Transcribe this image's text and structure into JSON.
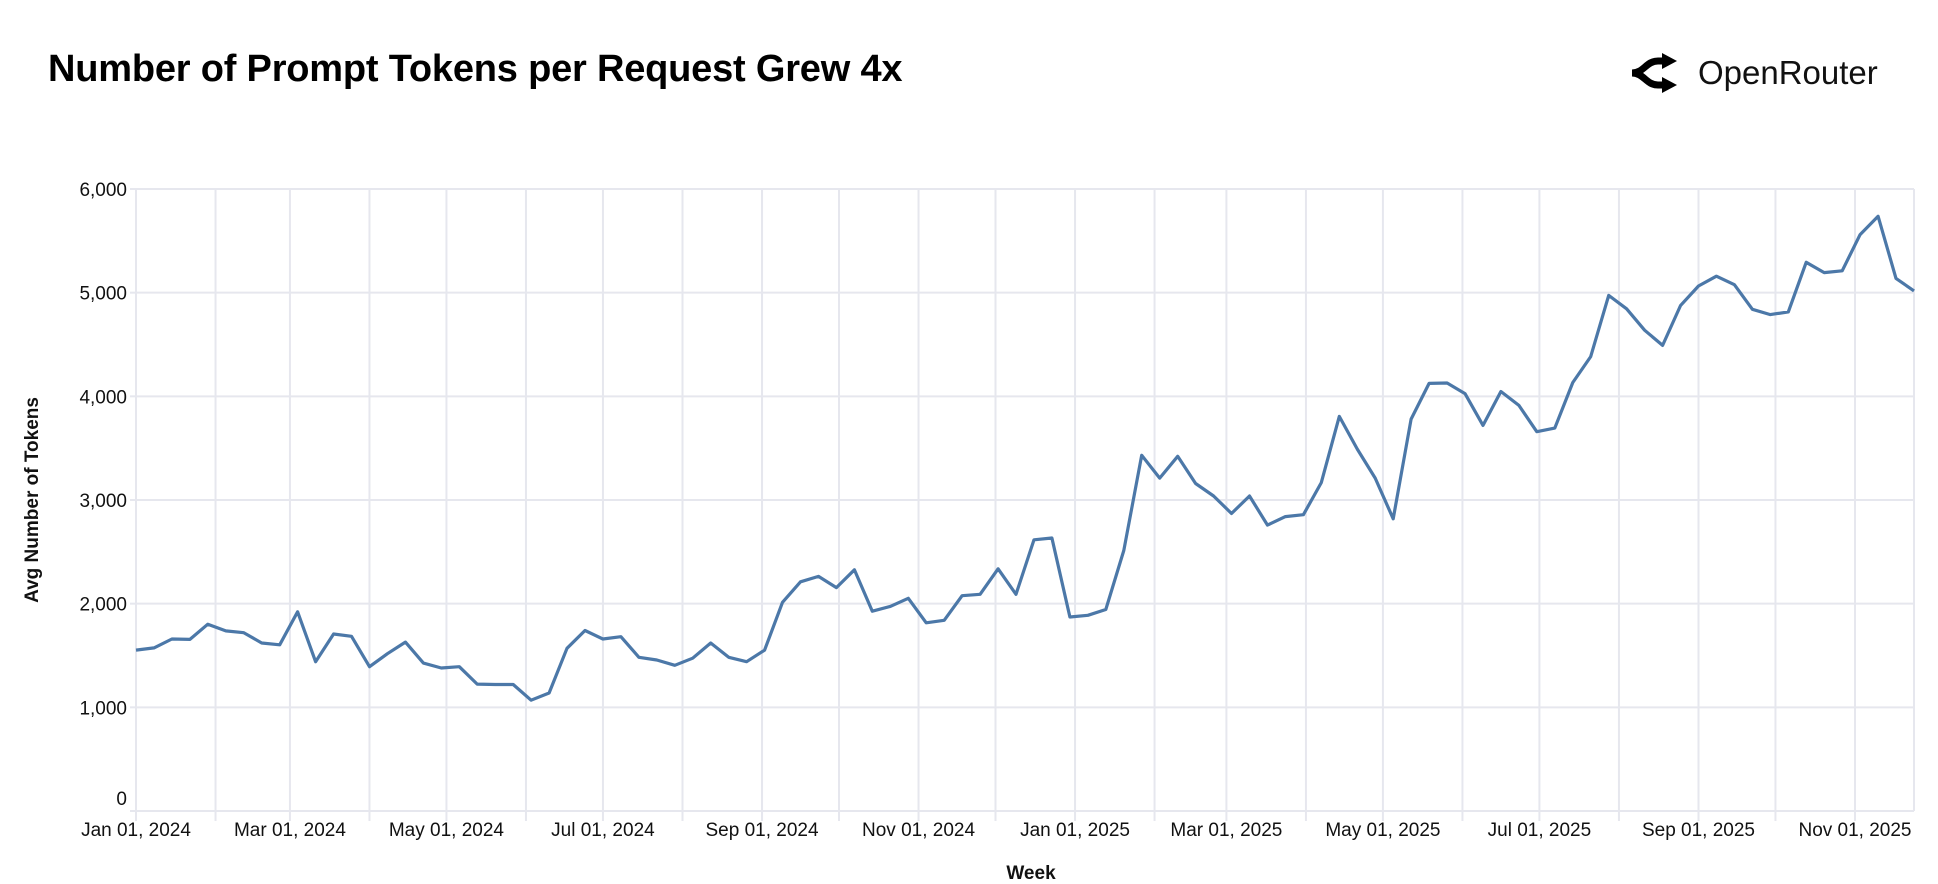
{
  "header": {
    "title": "Number of Prompt Tokens per Request Grew 4x",
    "logo_text": "OpenRouter",
    "logo_icon": "openrouter-arrows-icon"
  },
  "chart_data": {
    "type": "line",
    "title": "Number of Prompt Tokens per Request Grew 4x",
    "xlabel": "Week",
    "ylabel": "Avg Number of Tokens",
    "xlim": [
      "2024-01-01",
      "2025-11-24"
    ],
    "ylim": [
      0,
      6000
    ],
    "yticks": [
      0,
      1000,
      2000,
      3000,
      4000,
      5000,
      6000
    ],
    "ytick_labels": [
      "0",
      "1,000",
      "2,000",
      "3,000",
      "4,000",
      "5,000",
      "6,000"
    ],
    "xticks": [
      "2024-01-01",
      "2024-03-01",
      "2024-05-01",
      "2024-07-01",
      "2024-09-01",
      "2024-11-01",
      "2025-01-01",
      "2025-03-01",
      "2025-05-01",
      "2025-07-01",
      "2025-09-01",
      "2025-11-01"
    ],
    "xtick_labels": [
      "Jan 01, 2024",
      "Mar 01, 2024",
      "May 01, 2024",
      "Jul 01, 2024",
      "Sep 01, 2024",
      "Nov 01, 2024",
      "Jan 01, 2025",
      "Mar 01, 2025",
      "May 01, 2025",
      "Jul 01, 2025",
      "Sep 01, 2025",
      "Nov 01, 2025"
    ],
    "grid": true,
    "line_color": "#4c78a8",
    "x": [
      "2024-01-01",
      "2024-01-08",
      "2024-01-15",
      "2024-01-22",
      "2024-01-29",
      "2024-02-05",
      "2024-02-12",
      "2024-02-19",
      "2024-02-26",
      "2024-03-04",
      "2024-03-11",
      "2024-03-18",
      "2024-03-25",
      "2024-04-01",
      "2024-04-08",
      "2024-04-15",
      "2024-04-22",
      "2024-04-29",
      "2024-05-06",
      "2024-05-13",
      "2024-05-20",
      "2024-05-27",
      "2024-06-03",
      "2024-06-10",
      "2024-06-17",
      "2024-06-24",
      "2024-07-01",
      "2024-07-08",
      "2024-07-15",
      "2024-07-22",
      "2024-07-29",
      "2024-08-05",
      "2024-08-12",
      "2024-08-19",
      "2024-08-26",
      "2024-09-02",
      "2024-09-09",
      "2024-09-16",
      "2024-09-23",
      "2024-09-30",
      "2024-10-07",
      "2024-10-14",
      "2024-10-21",
      "2024-10-28",
      "2024-11-04",
      "2024-11-11",
      "2024-11-18",
      "2024-11-25",
      "2024-12-02",
      "2024-12-09",
      "2024-12-16",
      "2024-12-23",
      "2024-12-30",
      "2025-01-06",
      "2025-01-13",
      "2025-01-20",
      "2025-01-27",
      "2025-02-03",
      "2025-02-10",
      "2025-02-17",
      "2025-02-24",
      "2025-03-03",
      "2025-03-10",
      "2025-03-17",
      "2025-03-24",
      "2025-03-31",
      "2025-04-07",
      "2025-04-14",
      "2025-04-21",
      "2025-04-28",
      "2025-05-05",
      "2025-05-12",
      "2025-05-19",
      "2025-05-26",
      "2025-06-02",
      "2025-06-09",
      "2025-06-16",
      "2025-06-23",
      "2025-06-30",
      "2025-07-07",
      "2025-07-14",
      "2025-07-21",
      "2025-07-28",
      "2025-08-04",
      "2025-08-11",
      "2025-08-18",
      "2025-08-25",
      "2025-09-01",
      "2025-09-08",
      "2025-09-15",
      "2025-09-22",
      "2025-09-29",
      "2025-10-06",
      "2025-10-13",
      "2025-10-20",
      "2025-10-27",
      "2025-11-03",
      "2025-11-10",
      "2025-11-17",
      "2025-11-24"
    ],
    "y": [
      1552,
      1573,
      1659,
      1655,
      1802,
      1737,
      1720,
      1621,
      1603,
      1922,
      1440,
      1707,
      1685,
      1392,
      1517,
      1629,
      1427,
      1379,
      1392,
      1224,
      1220,
      1220,
      1069,
      1138,
      1569,
      1741,
      1659,
      1681,
      1483,
      1457,
      1405,
      1474,
      1621,
      1483,
      1440,
      1552,
      2013,
      2211,
      2263,
      2155,
      2327,
      1927,
      1974,
      2052,
      1815,
      1840,
      2077,
      2090,
      2336,
      2090,
      2616,
      2633,
      1871,
      1888,
      1944,
      2513,
      3431,
      3211,
      3422,
      3159,
      3039,
      2870,
      3039,
      2758,
      2840,
      2858,
      3168,
      3806,
      3491,
      3211,
      2819,
      3780,
      4125,
      4129,
      4026,
      3720,
      4047,
      3913,
      3659,
      3694,
      4133,
      4383,
      4974,
      4844,
      4638,
      4491,
      4875,
      5064,
      5159,
      5077,
      4840,
      4788,
      4814,
      5293,
      5194,
      5211,
      5560,
      5737,
      5138,
      5017
    ]
  }
}
